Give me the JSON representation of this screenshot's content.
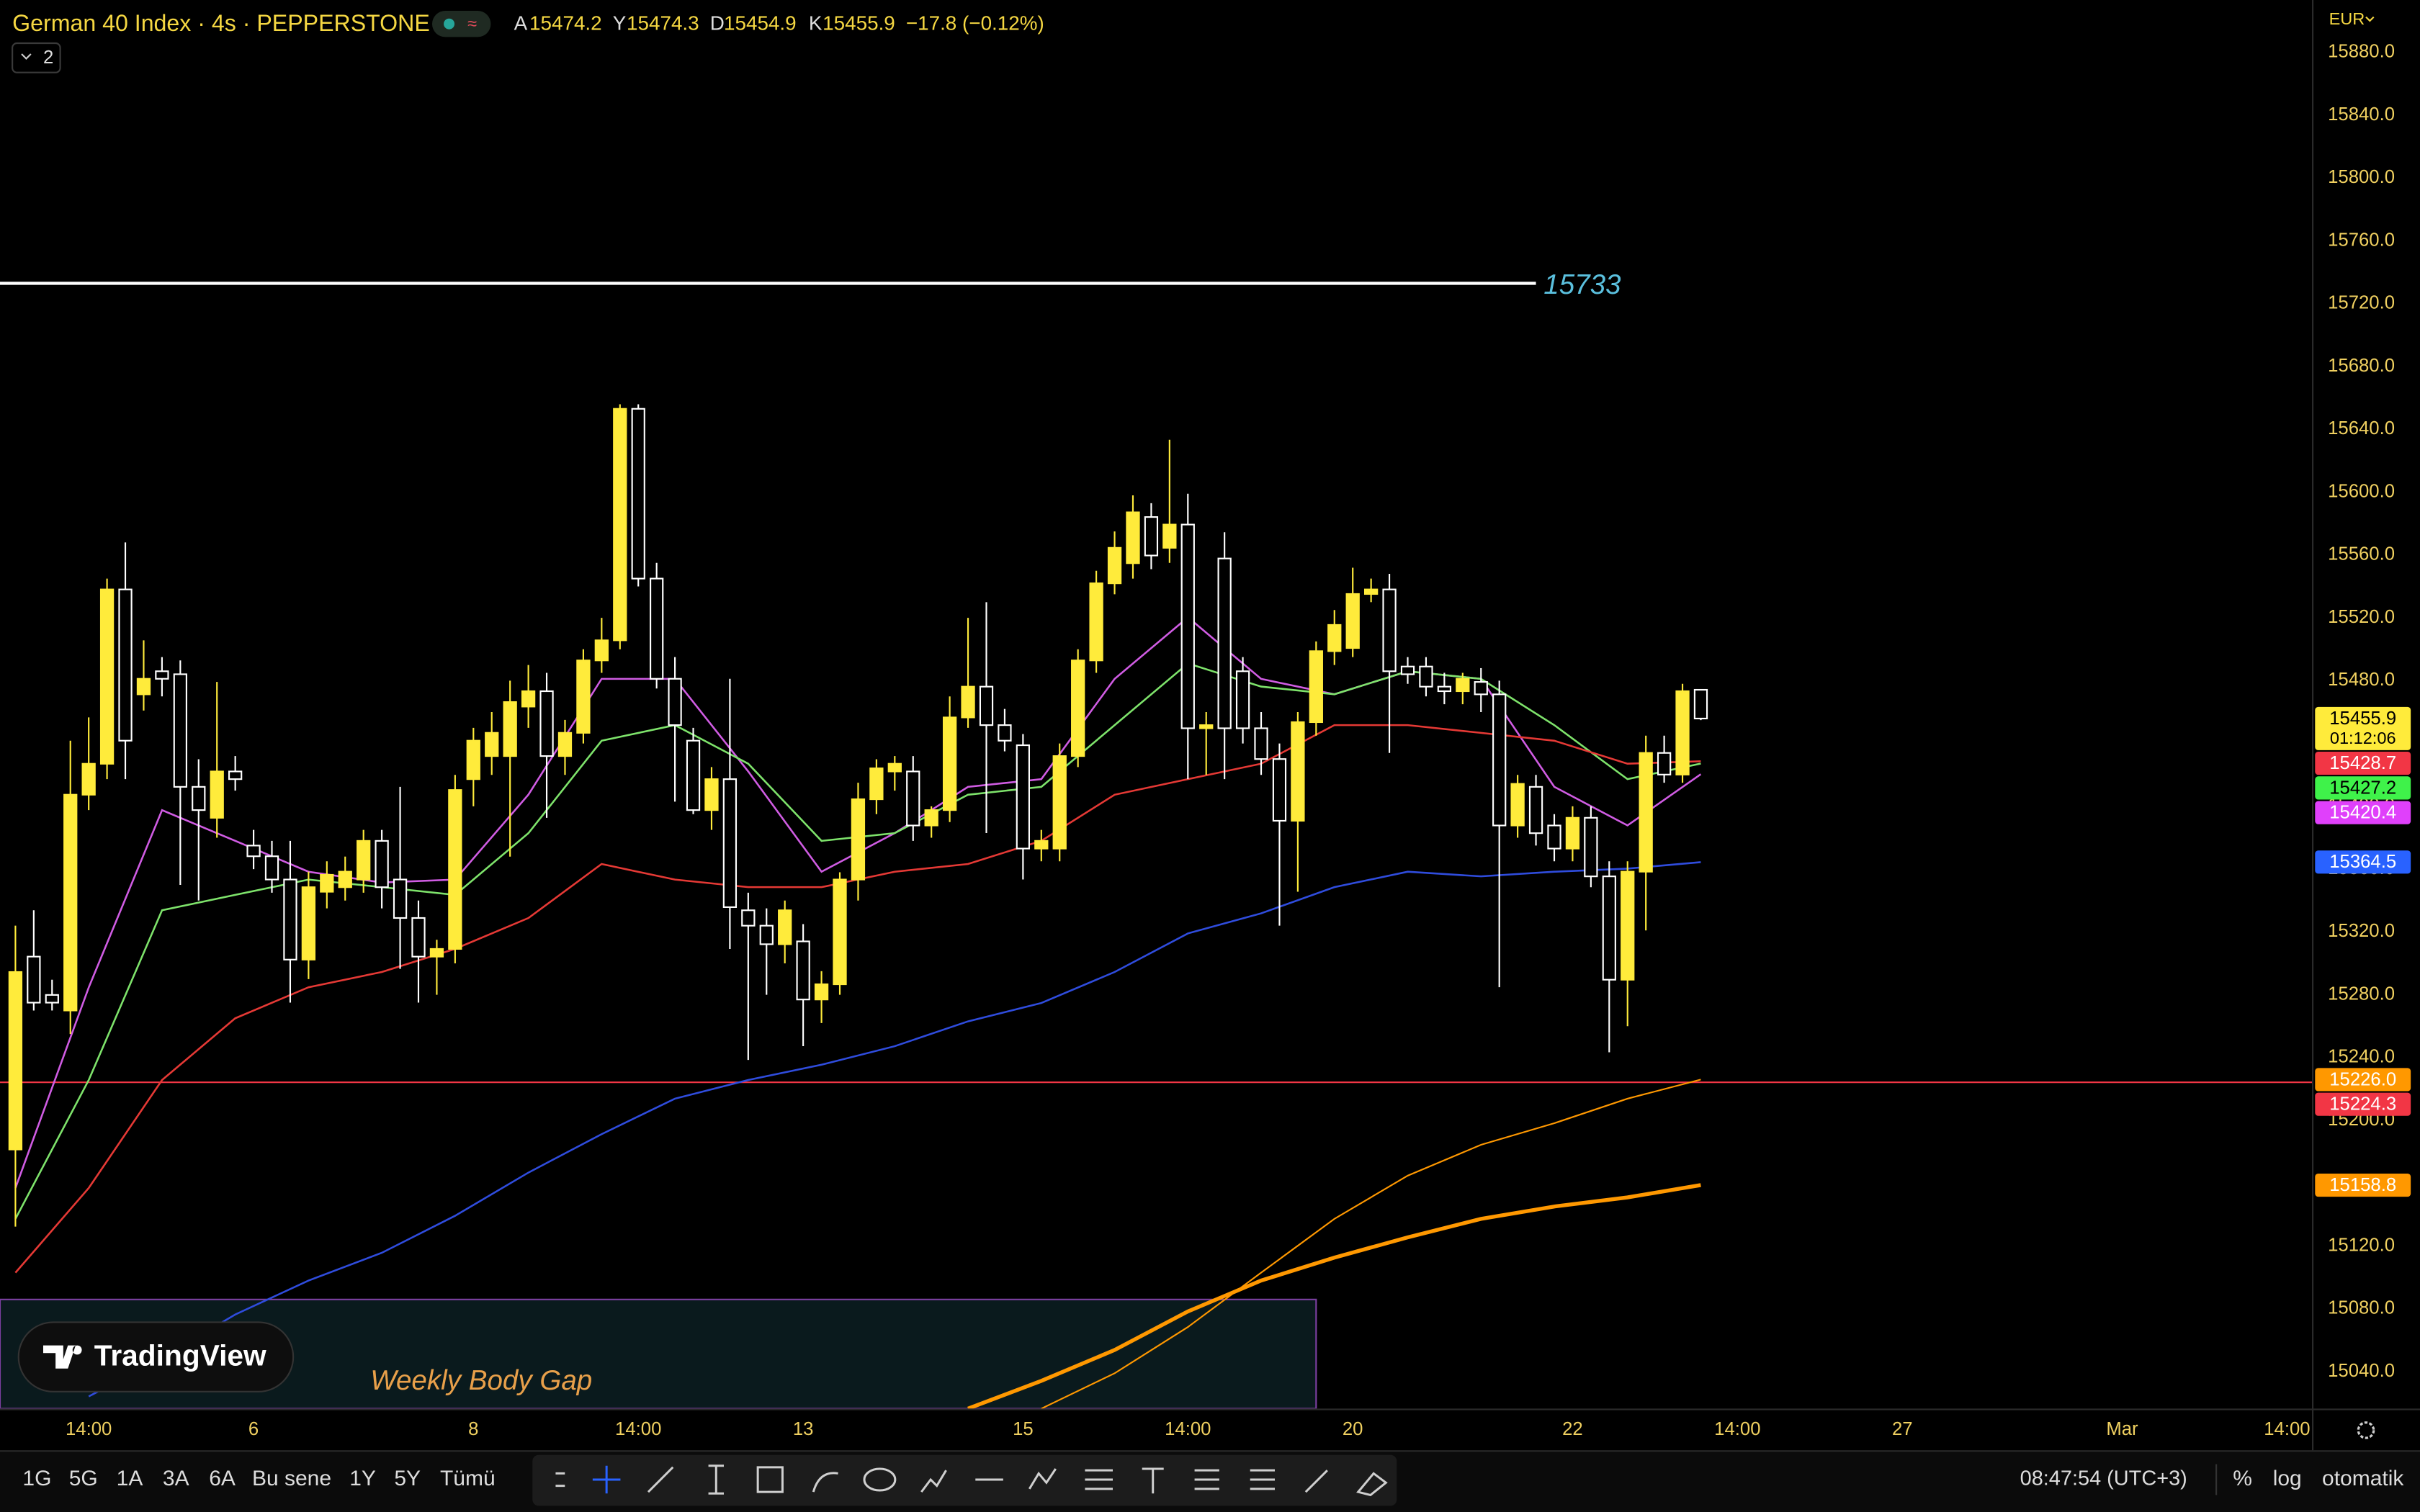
{
  "header": {
    "symbol": "German 40 Index · 4s · PEPPERSTONE",
    "ohlc_labels": [
      "A",
      "Y",
      "D",
      "K"
    ],
    "change": "−17.8 (−0.12%)",
    "currency": "EUR",
    "indicators_count": 2
  },
  "logo": "TradingView",
  "toolbar": {
    "ranges": [
      "1G",
      "5G",
      "1A",
      "3A",
      "6A",
      "Bu sene",
      "1Y",
      "5Y",
      "Tümü"
    ],
    "clock": "08:47:54 (UTC+3)",
    "percent": "%",
    "log": "log",
    "auto": "otomatik"
  },
  "chart_data": {
    "type": "candlestick",
    "up_color": "#ffeb3b",
    "down_color": "#ffffff",
    "grid": false,
    "ylim": [
      15016.5,
      15913.4
    ],
    "xlim": [
      -0.842,
      125.36
    ],
    "yticks": [
      {
        "value": 15040,
        "label": "15040.0"
      },
      {
        "value": 15080,
        "label": "15080.0"
      },
      {
        "value": 15120,
        "label": "15120.0"
      },
      {
        "value": 15160,
        "label": "15160.0"
      },
      {
        "value": 15200,
        "label": "15200.0"
      },
      {
        "value": 15240,
        "label": "15240.0"
      },
      {
        "value": 15280,
        "label": "15280.0"
      },
      {
        "value": 15320,
        "label": "15320.0"
      },
      {
        "value": 15360,
        "label": "15360.0"
      },
      {
        "value": 15400,
        "label": "15400.0"
      },
      {
        "value": 15440,
        "label": "15440.0"
      },
      {
        "value": 15480,
        "label": "15480.0"
      },
      {
        "value": 15520,
        "label": "15520.0"
      },
      {
        "value": 15560,
        "label": "15560.0"
      },
      {
        "value": 15600,
        "label": "15600.0"
      },
      {
        "value": 15640,
        "label": "15640.0"
      },
      {
        "value": 15680,
        "label": "15680.0"
      },
      {
        "value": 15720,
        "label": "15720.0"
      },
      {
        "value": 15760,
        "label": "15760.0"
      },
      {
        "value": 15800,
        "label": "15800.0"
      },
      {
        "value": 15840,
        "label": "15840.0"
      },
      {
        "value": 15880,
        "label": "15880.0"
      }
    ],
    "xticks": [
      {
        "value": 4,
        "label": "14:00"
      },
      {
        "value": 13,
        "label": "6"
      },
      {
        "value": 25,
        "label": "8"
      },
      {
        "value": 34,
        "label": "14:00"
      },
      {
        "value": 43,
        "label": "13"
      },
      {
        "value": 55,
        "label": "15"
      },
      {
        "value": 64,
        "label": "14:00"
      },
      {
        "value": 73,
        "label": "20"
      },
      {
        "value": 85,
        "label": "22"
      },
      {
        "value": 94,
        "label": "14:00"
      },
      {
        "value": 103,
        "label": "27"
      },
      {
        "value": 115,
        "label": "Mar"
      },
      {
        "value": 124,
        "label": "14:00"
      }
    ],
    "ohlc": [
      [
        15181.5,
        15324,
        15132.4,
        15294.5
      ],
      [
        15304.3,
        15333.8,
        15270,
        15275
      ],
      [
        15279.9,
        15289.6,
        15270,
        15275
      ],
      [
        15270,
        15441.8,
        15255,
        15407.4
      ],
      [
        15407.4,
        15456.6,
        15397.6,
        15427.1
      ],
      [
        15427.1,
        15545,
        15417.3,
        15538.1
      ],
      [
        15538.1,
        15568,
        15417.3,
        15441.8
      ],
      [
        15471.3,
        15505.7,
        15461,
        15481.2
      ],
      [
        15486,
        15495,
        15470,
        15481.2
      ],
      [
        15484.1,
        15492.9,
        15350,
        15412.4
      ],
      [
        15412.4,
        15430,
        15340,
        15397.6
      ],
      [
        15392.7,
        15479.2,
        15380,
        15422.2
      ],
      [
        15422.2,
        15432,
        15410,
        15417.3
      ],
      [
        15375,
        15385,
        15360,
        15368.2
      ],
      [
        15368.2,
        15378,
        15345,
        15353.4
      ],
      [
        15353.4,
        15378,
        15275,
        15302.4
      ],
      [
        15302.4,
        15358.4,
        15290,
        15348.5
      ],
      [
        15345.6,
        15365,
        15335,
        15356.4
      ],
      [
        15348.5,
        15368,
        15340,
        15358.4
      ],
      [
        15353.4,
        15385,
        15345,
        15378
      ],
      [
        15378,
        15385,
        15335,
        15348.5
      ],
      [
        15353.4,
        15412.4,
        15296.5,
        15328.9
      ],
      [
        15328.9,
        15340,
        15275,
        15304.3
      ],
      [
        15304.3,
        15315,
        15280,
        15309.2
      ],
      [
        15309.2,
        15420,
        15300,
        15410.4
      ],
      [
        15417.3,
        15450,
        15400,
        15441.8
      ],
      [
        15432,
        15460,
        15420,
        15446.8
      ],
      [
        15432,
        15480,
        15368,
        15466.4
      ],
      [
        15463.5,
        15490,
        15450,
        15473.3
      ],
      [
        15473.3,
        15485,
        15392.7,
        15432
      ],
      [
        15432,
        15455,
        15420,
        15446.8
      ],
      [
        15446.8,
        15500,
        15440,
        15492.9
      ],
      [
        15492.9,
        15520,
        15485,
        15505.7
      ],
      [
        15505.7,
        15656,
        15500,
        15653.1
      ],
      [
        15653.1,
        15656,
        15540,
        15545
      ],
      [
        15545,
        15555,
        15475,
        15481.2
      ],
      [
        15481.2,
        15495,
        15403,
        15451.7
      ],
      [
        15441.8,
        15450,
        15395,
        15397.6
      ],
      [
        15397.6,
        15425,
        15385,
        15417.3
      ],
      [
        15417.3,
        15481.2,
        15309.2,
        15335.8
      ],
      [
        15333.8,
        15345,
        15238.5,
        15324
      ],
      [
        15324,
        15335,
        15280,
        15312.2
      ],
      [
        15312.2,
        15340,
        15300,
        15333.8
      ],
      [
        15314,
        15325,
        15247.3,
        15277
      ],
      [
        15277,
        15295,
        15262,
        15286.7
      ],
      [
        15286.7,
        15358,
        15280,
        15353.4
      ],
      [
        15353.4,
        15415,
        15340,
        15404.5
      ],
      [
        15404.5,
        15430,
        15395,
        15424.2
      ],
      [
        15422.2,
        15432,
        15410,
        15427.1
      ],
      [
        15422.2,
        15432,
        15378,
        15387.8
      ],
      [
        15387.8,
        15400,
        15380,
        15397.6
      ],
      [
        15397.6,
        15470,
        15390,
        15456.6
      ],
      [
        15456.6,
        15520,
        15450,
        15476.2
      ],
      [
        15476.2,
        15530,
        15383,
        15451.7
      ],
      [
        15451.7,
        15462,
        15435,
        15441.8
      ],
      [
        15438.9,
        15446,
        15353.4,
        15373.1
      ],
      [
        15373.1,
        15385,
        15365,
        15378
      ],
      [
        15373.1,
        15440,
        15365,
        15432
      ],
      [
        15432,
        15500,
        15425,
        15492.9
      ],
      [
        15492.9,
        15550,
        15485,
        15542
      ],
      [
        15542,
        15575,
        15535,
        15564.6
      ],
      [
        15554.8,
        15598,
        15545,
        15587.2
      ],
      [
        15584.2,
        15593,
        15551,
        15559.7
      ],
      [
        15564.6,
        15633.4,
        15555,
        15579.4
      ],
      [
        15579.4,
        15599,
        15417.3,
        15449.7
      ],
      [
        15449.7,
        15460,
        15420,
        15451.7
      ],
      [
        15557.8,
        15574.5,
        15417.3,
        15449.7
      ],
      [
        15486,
        15495,
        15440,
        15449.7
      ],
      [
        15449.7,
        15460,
        15420,
        15430.1
      ],
      [
        15430.1,
        15440,
        15324,
        15390.8
      ],
      [
        15390.8,
        15460,
        15345.6,
        15453.6
      ],
      [
        15453.6,
        15505,
        15445,
        15498.8
      ],
      [
        15498.8,
        15525,
        15490,
        15515.5
      ],
      [
        15500.8,
        15551.9,
        15495,
        15535.2
      ],
      [
        15535.2,
        15545,
        15530,
        15538.1
      ],
      [
        15538.1,
        15548,
        15434,
        15486
      ],
      [
        15489,
        15495,
        15478,
        15484.1
      ],
      [
        15489,
        15495,
        15470,
        15476.2
      ],
      [
        15476.2,
        15485,
        15465,
        15473.3
      ],
      [
        15473.3,
        15485,
        15465,
        15481.2
      ],
      [
        15479.2,
        15488,
        15460,
        15471.3
      ],
      [
        15471.3,
        15480,
        15284.8,
        15387.8
      ],
      [
        15387.8,
        15420,
        15380,
        15414.3
      ],
      [
        15412.4,
        15420,
        15375,
        15382.9
      ],
      [
        15387.8,
        15395,
        15365,
        15373.1
      ],
      [
        15373.1,
        15400,
        15365,
        15392.7
      ],
      [
        15392.7,
        15400,
        15348.5,
        15355.4
      ],
      [
        15355.4,
        15365,
        15243.4,
        15289.6
      ],
      [
        15289.6,
        15365,
        15260,
        15358.4
      ],
      [
        15358.4,
        15445,
        15321,
        15434
      ],
      [
        15434,
        15445,
        15415,
        15420.2
      ],
      [
        15420.2,
        15478,
        15415,
        15473.3
      ],
      [
        15474.2,
        15474.3,
        15454.9,
        15455.9
      ]
    ],
    "lines": [
      {
        "color": "#d05ce3",
        "width": 1.2,
        "x": [
          0,
          4,
          8,
          12,
          16,
          20,
          24,
          28,
          32,
          36,
          40,
          44,
          48,
          52,
          56,
          60,
          64,
          68,
          72,
          76,
          80,
          84,
          88,
          92
        ],
        "values": [
          15157,
          15284.7,
          15397.6,
          15378,
          15358.4,
          15351.5,
          15353.4,
          15407.5,
          15481.2,
          15481.2,
          15422.2,
          15358.4,
          15382.9,
          15412.4,
          15417.3,
          15481.2,
          15520.4,
          15481.2,
          15471.3,
          15486,
          15481.2,
          15412.4,
          15387.8,
          15420.4
        ]
      },
      {
        "color": "#7ee36b",
        "width": 1.2,
        "x": [
          0,
          4,
          8,
          12,
          16,
          20,
          24,
          28,
          32,
          36,
          40,
          44,
          48,
          52,
          56,
          60,
          64,
          68,
          72,
          76,
          80,
          84,
          88,
          92
        ],
        "values": [
          15137.3,
          15225.7,
          15333.8,
          15343.6,
          15353.4,
          15348.5,
          15343.6,
          15382.9,
          15441.8,
          15451.7,
          15427.1,
          15378,
          15382.9,
          15407.4,
          15412.4,
          15451.7,
          15491,
          15476.2,
          15471.3,
          15486,
          15481.2,
          15451.7,
          15417.3,
          15427.2
        ]
      },
      {
        "color": "#e53935",
        "width": 1.2,
        "x": [
          0,
          4,
          8,
          12,
          16,
          20,
          24,
          28,
          32,
          36,
          40,
          44,
          48,
          52,
          56,
          60,
          64,
          68,
          72,
          76,
          80,
          84,
          88,
          92
        ],
        "values": [
          15103,
          15157,
          15225.7,
          15265,
          15284.8,
          15294.5,
          15309.2,
          15328.9,
          15363.3,
          15353.4,
          15348.5,
          15348.5,
          15358.4,
          15363.3,
          15378,
          15407.4,
          15417.3,
          15427.1,
          15451.7,
          15451.7,
          15446.8,
          15441.8,
          15427.1,
          15428.7
        ]
      },
      {
        "color": "#2f4cdd",
        "width": 1.2,
        "x": [
          4,
          8,
          12,
          16,
          20,
          24,
          28,
          32,
          36,
          40,
          44,
          48,
          52,
          56,
          60,
          64,
          68,
          72,
          76,
          80,
          84,
          88,
          92
        ],
        "values": [
          15024.3,
          15048.9,
          15076.4,
          15098,
          15115.7,
          15139.3,
          15166.8,
          15191.3,
          15213.9,
          15225.7,
          15235.5,
          15247.3,
          15263.1,
          15274.8,
          15294.5,
          15319.1,
          15331.8,
          15348.5,
          15358.4,
          15355.4,
          15358.4,
          15360.3,
          15364.5
        ]
      },
      {
        "color": "#ff9800",
        "width": 1,
        "x": [
          56,
          60,
          64,
          68,
          72,
          76,
          80,
          84,
          88,
          92
        ],
        "values": [
          15016.5,
          15039,
          15068.5,
          15103,
          15137.3,
          15164.8,
          15184.5,
          15198.2,
          15213.9,
          15226
        ]
      },
      {
        "color": "#ff9800",
        "width": 2.5,
        "x": [
          52,
          56,
          60,
          64,
          68,
          72,
          76,
          80,
          84,
          88,
          92
        ],
        "values": [
          15016.5,
          15034.2,
          15053.8,
          15078.4,
          15098,
          15112.7,
          15125.5,
          15137.3,
          15145.2,
          15151,
          15158.8
        ]
      }
    ],
    "hlines": [
      {
        "value": 15733,
        "color": "#ffffff",
        "x_end": 83
      },
      {
        "value": 15224.3,
        "color": "#f23645"
      }
    ],
    "zones": [
      {
        "label": "Weekly Body Gap",
        "top": 15086,
        "x_end": 71
      }
    ],
    "countdown": "01:12:06",
    "price_tags": [
      {
        "value": 15455.9,
        "color": "#ffeb3b"
      },
      {
        "value": 15428.7,
        "color": "#f23645"
      },
      {
        "value": 15427.2,
        "color": "#3ff24a"
      },
      {
        "value": 15420.4,
        "color": "#e040fb"
      },
      {
        "value": 15364.5,
        "color": "#2962ff"
      },
      {
        "value": 15226,
        "label": "15226.0",
        "color": "#ff9800"
      },
      {
        "value": 15224.3,
        "color": "#f23645"
      },
      {
        "value": 15158.8,
        "color": "#ff9800"
      }
    ]
  }
}
